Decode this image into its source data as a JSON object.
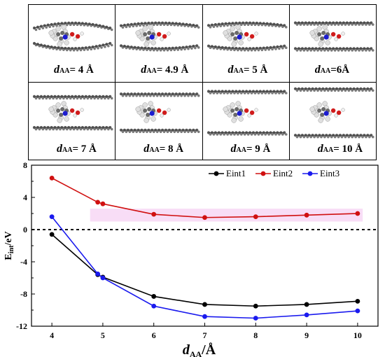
{
  "panels": [
    {
      "d": "4 Å",
      "label_sym": "d",
      "label_sub": "AA",
      "sep": "= ",
      "spacing": 4
    },
    {
      "d": "4.9 Å",
      "label_sym": "d",
      "label_sub": "AA",
      "sep": "= ",
      "spacing": 4.9
    },
    {
      "d": "5 Å",
      "label_sym": "d",
      "label_sub": "AA",
      "sep": "= ",
      "spacing": 5
    },
    {
      "d": "6Å",
      "label_sym": "d",
      "label_sub": "AA",
      "sep": "=",
      "spacing": 6
    },
    {
      "d": "7 Å",
      "label_sym": "d",
      "label_sub": "AA",
      "sep": "= ",
      "spacing": 7
    },
    {
      "d": "8 Å",
      "label_sym": "d",
      "label_sub": "AA",
      "sep": "= ",
      "spacing": 8
    },
    {
      "d": "9 Å",
      "label_sym": "d",
      "label_sub": "AA",
      "sep": "= ",
      "spacing": 9
    },
    {
      "d": "10 Å",
      "label_sym": "d",
      "label_sub": "AA",
      "sep": "= ",
      "spacing": 10
    }
  ],
  "colors": {
    "carbon": "#5a5a5a",
    "hydrogen": "#e0e0e0",
    "nitrogen": "#1c1cd0",
    "oxygen": "#d01c1c",
    "band": "#f4c6f0"
  },
  "chart_data": {
    "type": "line",
    "xlabel": "d_AA/Å",
    "xlabel_sym": "d",
    "xlabel_sub": "AA",
    "xlabel_unit": "/Å",
    "ylabel": "E_int/eV",
    "ylabel_main": "E",
    "ylabel_sub": "int",
    "ylabel_unit": "/eV",
    "xlim": [
      3.6,
      10.4
    ],
    "ylim": [
      -12,
      8
    ],
    "xticks": [
      "4",
      "5",
      "6",
      "7",
      "8",
      "9",
      "10"
    ],
    "yticks": [
      "8",
      "4",
      "0",
      "-4",
      "-8",
      "-12"
    ],
    "reference_line": 0,
    "legend": "top-right",
    "series": [
      {
        "name": "Eint1",
        "color": "#000000",
        "x": [
          4,
          4.9,
          5,
          6,
          7,
          8,
          9,
          10
        ],
        "y": [
          -0.6,
          -5.6,
          -5.9,
          -8.3,
          -9.3,
          -9.5,
          -9.3,
          -8.9
        ]
      },
      {
        "name": "Eint2",
        "color": "#d01010",
        "x": [
          4,
          4.9,
          5,
          6,
          7,
          8,
          9,
          10
        ],
        "y": [
          6.4,
          3.4,
          3.2,
          1.9,
          1.5,
          1.6,
          1.8,
          2.0
        ]
      },
      {
        "name": "Eint3",
        "color": "#1a1aee",
        "x": [
          4,
          4.9,
          5,
          6,
          7,
          8,
          9,
          10
        ],
        "y": [
          1.6,
          -5.5,
          -6.0,
          -9.5,
          -10.8,
          -11.0,
          -10.6,
          -10.1
        ]
      }
    ]
  }
}
